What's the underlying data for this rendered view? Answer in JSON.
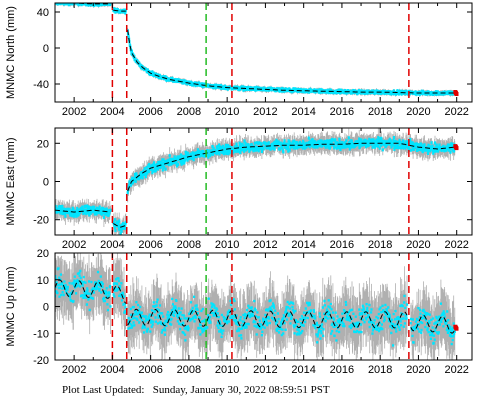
{
  "footer": {
    "label": "Plot Last Updated:",
    "timestamp": "Sunday, January 30, 2022 08:59:51 PST"
  },
  "colors": {
    "data": "#00e5ff",
    "error_bar": "#b0b0b0",
    "model": "#000000",
    "event_line": "#e00000",
    "antenna_line": "#22bb22",
    "recent": "#e00000"
  },
  "chart_data": [
    {
      "type": "scatter",
      "ylabel": "MNMC North (mm)",
      "xlim": [
        2001.0,
        2022.8
      ],
      "ylim": [
        -60,
        50
      ],
      "xticks": [
        2002,
        2004,
        2006,
        2008,
        2010,
        2012,
        2014,
        2016,
        2018,
        2020,
        2022
      ],
      "yticks": [
        -40,
        0,
        40
      ],
      "vlines_red": [
        2004.0,
        2004.75,
        2010.25,
        2019.5
      ],
      "vlines_green": [
        2008.9
      ],
      "series": [
        {
          "x": [
            2001.0,
            2002.0,
            2003.0,
            2003.9
          ],
          "y": [
            50,
            50,
            49,
            49
          ]
        },
        {
          "x": [
            2004.05,
            2004.4,
            2004.7
          ],
          "y": [
            42,
            41,
            41
          ]
        },
        {
          "x": [
            2004.8,
            2004.9,
            2005.0,
            2005.3,
            2005.6,
            2006.0,
            2006.5,
            2007.0,
            2008.0,
            2009.0,
            2010.0,
            2011.0,
            2012.0,
            2013.0,
            2014.0,
            2015.0,
            2016.0,
            2017.0,
            2018.0,
            2019.0,
            2020.0,
            2021.0,
            2021.9
          ],
          "y": [
            20,
            5,
            -5,
            -16,
            -22,
            -28,
            -32,
            -35,
            -39,
            -42,
            -44,
            -45,
            -46,
            -47,
            -47.5,
            -48,
            -48.5,
            -49,
            -49,
            -49.5,
            -50,
            -50,
            -50
          ]
        }
      ]
    },
    {
      "type": "scatter",
      "ylabel": "MNMC East (mm)",
      "xlim": [
        2001.0,
        2022.8
      ],
      "ylim": [
        -28,
        28
      ],
      "xticks": [
        2002,
        2004,
        2006,
        2008,
        2010,
        2012,
        2014,
        2016,
        2018,
        2020,
        2022
      ],
      "yticks": [
        -20,
        0,
        20
      ],
      "vlines_red": [
        2004.0,
        2004.75,
        2010.25,
        2019.5
      ],
      "vlines_green": [
        2008.9
      ],
      "series": [
        {
          "x": [
            2001.0,
            2002.0,
            2003.0,
            2003.9
          ],
          "y": [
            -15,
            -16,
            -15,
            -16
          ]
        },
        {
          "x": [
            2004.05,
            2004.4,
            2004.7
          ],
          "y": [
            -22,
            -24,
            -23
          ]
        },
        {
          "x": [
            2004.8,
            2005.0,
            2005.5,
            2006.0,
            2007.0,
            2008.0,
            2009.0,
            2010.0,
            2011.0,
            2012.0,
            2013.0,
            2014.0,
            2015.0,
            2016.0,
            2017.0,
            2018.0,
            2019.0,
            2020.0,
            2021.0,
            2021.9
          ],
          "y": [
            -5,
            0,
            4,
            7,
            10,
            13,
            15,
            17,
            18,
            18.5,
            19,
            19,
            19.5,
            19.5,
            20,
            20,
            20,
            18,
            17,
            18
          ]
        }
      ]
    },
    {
      "type": "scatter",
      "ylabel": "MNMC Up (mm)",
      "xlim": [
        2001.0,
        2022.8
      ],
      "ylim": [
        -20,
        20
      ],
      "xticks": [
        2002,
        2004,
        2006,
        2008,
        2010,
        2012,
        2014,
        2016,
        2018,
        2020,
        2022
      ],
      "yticks": [
        -20,
        -10,
        0,
        10,
        20
      ],
      "vlines_red": [
        2004.0,
        2004.75,
        2010.25,
        2019.5
      ],
      "vlines_green": [
        2008.9
      ],
      "seasonal_amplitude": 3,
      "series": [
        {
          "x": [
            2001.0,
            2003.9
          ],
          "y": [
            7,
            6
          ]
        },
        {
          "x": [
            2004.05,
            2004.7
          ],
          "y": [
            5,
            4
          ]
        },
        {
          "x": [
            2004.8,
            2010.0,
            2015.0,
            2019.4
          ],
          "y": [
            -4,
            -4.5,
            -5,
            -5
          ]
        },
        {
          "x": [
            2019.6,
            2021.9
          ],
          "y": [
            -6,
            -7
          ]
        }
      ]
    }
  ]
}
